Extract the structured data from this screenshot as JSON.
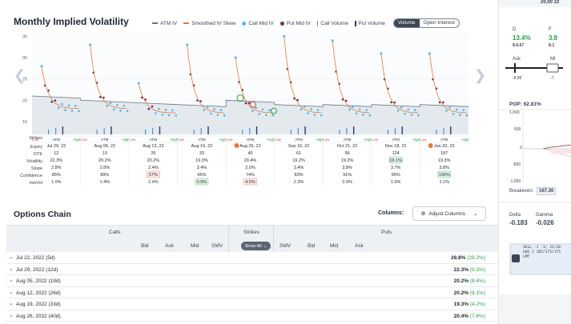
{
  "header": {
    "title": "Monthly Implied Volatility",
    "legend": [
      {
        "label": "ATM IV",
        "kind": "line",
        "color": "#6b7683"
      },
      {
        "label": "Smoothed IV Skew",
        "kind": "line",
        "color": "#e07b3a"
      },
      {
        "label": "Call Mid IV",
        "kind": "dot",
        "color": "#4fb8e6"
      },
      {
        "label": "Put Mid IV",
        "kind": "dot",
        "color": "#6b2a5e"
      },
      {
        "label": "Call Volume",
        "kind": "bar",
        "color": "#4a90d9"
      },
      {
        "label": "Put Volume",
        "kind": "bar",
        "color": "#3a3a5a"
      }
    ],
    "toggle": {
      "active": "Volume",
      "inactive": "Open Interest"
    }
  },
  "chart_data": {
    "type": "scatter",
    "title": "Monthly Implied Volatility",
    "ylim": [
      12,
      36
    ],
    "yticks": [
      15,
      20,
      25,
      30,
      35
    ],
    "strike_labels": [
      "Low",
      "ATM",
      "High"
    ],
    "expiries": [
      {
        "label": "Jul 29, 22",
        "dte": "12",
        "volatility": "22.3%",
        "slope": "2.8%",
        "confidence": "85%",
        "mwvol": "1.0%",
        "peak": 28,
        "atm": 21,
        "end": 18
      },
      {
        "label": "Aug 05, 22",
        "dte": "19",
        "volatility": "20.2%",
        "slope": "2.8%",
        "confidence": "89%",
        "mwvol": "1.4%",
        "peak": 33,
        "atm": 20,
        "end": 18
      },
      {
        "label": "Aug 12, 22",
        "dte": "26",
        "volatility": "20.2%",
        "slope": "2.4%",
        "confidence": "57%",
        "mwvol": "2.4%",
        "peak": 24,
        "atm": 19.5,
        "end": 17,
        "confidence_flag": "red"
      },
      {
        "label": "Aug 19, 22",
        "dte": "33",
        "volatility": "19.3%",
        "slope": "3.4%",
        "confidence": "95%",
        "mwvol": "0.5%",
        "peak": 33,
        "atm": 19,
        "end": 17,
        "mwvol_flag": "green"
      },
      {
        "label": "Aug 26, 22",
        "dte": "40",
        "volatility": "20.4%",
        "slope": "2.0%",
        "confidence": "74%",
        "mwvol": "4.5%",
        "peak": 30,
        "atm": 20,
        "end": 17,
        "mwvol_flag": "red",
        "marked": true
      },
      {
        "label": "Sep 16, 22",
        "dte": "61",
        "volatility": "19.2%",
        "slope": "3.4%",
        "confidence": "83%",
        "mwvol": "2.3%",
        "peak": 35,
        "atm": 19,
        "end": 17
      },
      {
        "label": "Oct 21, 22",
        "dte": "96",
        "volatility": "19.2%",
        "slope": "3.8%",
        "confidence": "91%",
        "mwvol": "0.9%",
        "peak": 34,
        "atm": 19,
        "end": 17
      },
      {
        "label": "Nov 18, 22",
        "dte": "124",
        "volatility": "19.1%",
        "slope": "3.7%",
        "confidence": "95%",
        "mwvol": "1.0%",
        "peak": 31,
        "atm": 19,
        "end": 17,
        "volatility_flag": "green"
      },
      {
        "label": "Jan 20, 23",
        "dte": "187",
        "volatility": "19.3%",
        "slope": "3.8%",
        "confidence": "100%",
        "mwvol": "1.1%",
        "peak": 31,
        "atm": 19,
        "end": 17,
        "confidence_flag": "green",
        "marked": true
      }
    ]
  },
  "rowlabels": {
    "strikes": "Strikes",
    "expiry": "Expiry",
    "dte": "DTE",
    "volatility": "Volatility",
    "slope": "Slope",
    "confidence": "Confidence",
    "mwvol": "mwVol"
  },
  "options_chain": {
    "title": "Options Chain",
    "columns_label": "Columns:",
    "adjust_label": "Adjust Columns",
    "groups": {
      "calls": "Calls",
      "strikes": "Strikes",
      "puts": "Puts"
    },
    "call_cols": [
      "Bid",
      "Ask",
      "Mid",
      "SMV"
    ],
    "put_cols": [
      "SMV",
      "Bid",
      "Mid",
      "Ask"
    ],
    "show_all": "Show All",
    "rows": [
      {
        "expiry": "Jul 22, 2022 (5d)",
        "iv": "28.8%",
        "chg": "(29.2%)"
      },
      {
        "expiry": "Jul 29, 2022 (12d)",
        "iv": "22.3%",
        "chg": "(9.3%)"
      },
      {
        "expiry": "Aug 05, 2022 (19d)",
        "iv": "20.2%",
        "chg": "(8.4%)"
      },
      {
        "expiry": "Aug 12, 2022 (26d)",
        "iv": "20.2%",
        "chg": "(9.1%)"
      },
      {
        "expiry": "Aug 19, 2022 (33d)",
        "iv": "19.3%",
        "chg": "(4.2%)"
      },
      {
        "expiry": "Aug 26, 2022 (40d)",
        "iv": "20.4%",
        "chg": "(7.6%)"
      }
    ]
  },
  "sidebar": {
    "top_value": "20,00 22",
    "letter_d": "D",
    "letter_f": "F",
    "pct": "13.4%",
    "pct2": "3.8",
    "val1": "$-6.67",
    "val2": "$-1",
    "ask": "Ask",
    "mi": "Mi",
    "neg1": "-8.85",
    "neg2": "-7.",
    "pop": "POP: 62.81%",
    "y1000": "1,000",
    "y500": "500",
    "y0": "0",
    "yn500": "-500",
    "yn1000": "-1,000",
    "breakeven": "Breakeven:",
    "breakeven_val": "167.30",
    "delta": "Delta",
    "gamma": "Gamma",
    "delta_val": "-0.183",
    "gamma_val": "-0.026",
    "order_text": "SELL -1 -1/ 22/26 AUG 2 165/175/175 LMT"
  }
}
